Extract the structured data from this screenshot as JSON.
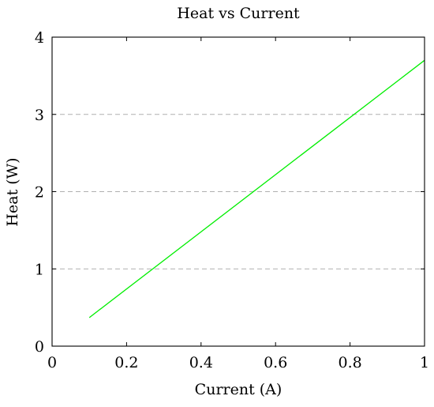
{
  "chart_data": {
    "type": "line",
    "title": "Heat vs Current",
    "xlabel": "Current (A)",
    "ylabel": "Heat (W)",
    "xlim": [
      0,
      1
    ],
    "ylim": [
      0,
      4
    ],
    "x_ticks": [
      "0",
      "0.2",
      "0.4",
      "0.6",
      "0.8",
      "1"
    ],
    "y_ticks": [
      "0",
      "1",
      "2",
      "3",
      "4"
    ],
    "grid": "horizontal dashed",
    "series": [
      {
        "color": "#00ee00",
        "x": [
          0.1,
          1.0
        ],
        "y": [
          0.37,
          3.7
        ]
      }
    ]
  }
}
